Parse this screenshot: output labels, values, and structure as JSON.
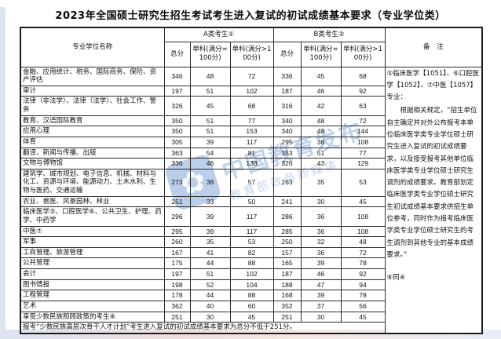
{
  "title": "2023年全国硕士研究生招生考试考生进入复试的初试成绩基本要求（专业学位类）",
  "table": {
    "col_headers": {
      "degree_name": "专业学位名称",
      "group_a": "A类考生①",
      "group_b": "B类考生②",
      "total": "总分",
      "single_eq100": "单科(满分=100分)",
      "single_gt100": "单科(满分>100分)",
      "remark": "备　注"
    },
    "rows": [
      {
        "name": "金融、应用统计、税务、国际商务、保险、资产评估",
        "a": [
          346,
          48,
          72
        ],
        "b": [
          336,
          45,
          68
        ]
      },
      {
        "name": "审计",
        "a": [
          197,
          51,
          102
        ],
        "b": [
          187,
          46,
          92
        ]
      },
      {
        "name": "法律（非法学）、法律（法学）、社会工作、警务",
        "a": [
          326,
          45,
          68
        ],
        "b": [
          316,
          42,
          63
        ]
      },
      {
        "name": "教育、汉语国际教育",
        "a": [
          350,
          51,
          77
        ],
        "b": [
          340,
          48,
          72
        ]
      },
      {
        "name": "应用心理",
        "a": [
          350,
          51,
          153
        ],
        "b": [
          340,
          48,
          144
        ]
      },
      {
        "name": "体育",
        "a": [
          305,
          39,
          117
        ],
        "b": [
          295,
          36,
          108
        ]
      },
      {
        "name": "翻译、新闻与传播、出版",
        "a": [
          363,
          54,
          81
        ],
        "b": [
          353,
          51,
          77
        ]
      },
      {
        "name": "文物与博物馆",
        "a": [
          336,
          46,
          138
        ],
        "b": [
          326,
          43,
          129
        ]
      },
      {
        "name": "建筑学、城市规划、电子信息、机械、材料与化工、资源与环境、能源动力、土木水利、生物与医药、交通运输",
        "a": [
          273,
          38,
          57
        ],
        "b": [
          263,
          35,
          53
        ]
      },
      {
        "name": "农业、兽医、风景园林、林业",
        "a": [
          251,
          33,
          50
        ],
        "b": [
          241,
          30,
          45
        ]
      },
      {
        "name": "临床医学⑤、口腔医学⑥、公共卫生、护理、药学、中药学",
        "a": [
          296,
          39,
          117
        ],
        "b": [
          286,
          36,
          108
        ]
      },
      {
        "name": "中医⑦",
        "a": [
          295,
          39,
          117
        ],
        "b": [
          285,
          36,
          108
        ]
      },
      {
        "name": "军事",
        "a": [
          260,
          35,
          53
        ],
        "b": [
          250,
          32,
          48
        ]
      },
      {
        "name": "工商管理、旅游管理",
        "a": [
          167,
          41,
          82
        ],
        "b": [
          157,
          36,
          72
        ]
      },
      {
        "name": "公共管理",
        "a": [
          175,
          44,
          88
        ],
        "b": [
          165,
          39,
          78
        ]
      },
      {
        "name": "会计",
        "a": [
          197,
          51,
          102
        ],
        "b": [
          187,
          46,
          92
        ]
      },
      {
        "name": "图书情报",
        "a": [
          198,
          52,
          104
        ],
        "b": [
          188,
          47,
          94
        ]
      },
      {
        "name": "工程管理",
        "a": [
          178,
          44,
          88
        ],
        "b": [
          168,
          39,
          78
        ]
      },
      {
        "name": "艺术",
        "a": [
          362,
          40,
          60
        ],
        "b": [
          352,
          37,
          56
        ]
      },
      {
        "name": "享受少数民族照顾政策的考生⑧",
        "a": [
          251,
          30,
          45
        ],
        "b": [
          251,
          30,
          45
        ]
      }
    ],
    "remark_paragraphs": [
      "⑤临床医学【1051】、⑥口腔医学【1052】、⑦中医【1057】专业：",
      "根据相关规定，“招生单位自主确定并对外公布报考本单位临床医学类专业学位硕士研究生进入复试的初试成绩要求，以及接受报考其他单位临床医学类专业学位硕士研究生调剂的成绩要求。教育部划定临床医学类专业学位硕士研究生初试成绩基本要求供招生单位参考，同时作为报考临床医学类专业学位硕士研究生的考生调剂到其他专业的基本成绩要求。”",
      "⑧同④"
    ],
    "footer_note": "报考“少数民族高层次骨干人才计划”考生进入复试的初试成绩基本要求为总分不低于251分。"
  },
  "watermark": {
    "logo_glyph": "✿",
    "line_big": "中国教育发布",
    "line_small": "教育部政务新媒体",
    "color": "#6a95d2"
  },
  "colors": {
    "table_border": "#1c1c1c",
    "text": "#141414",
    "edge_strip": "#dde4f1"
  }
}
